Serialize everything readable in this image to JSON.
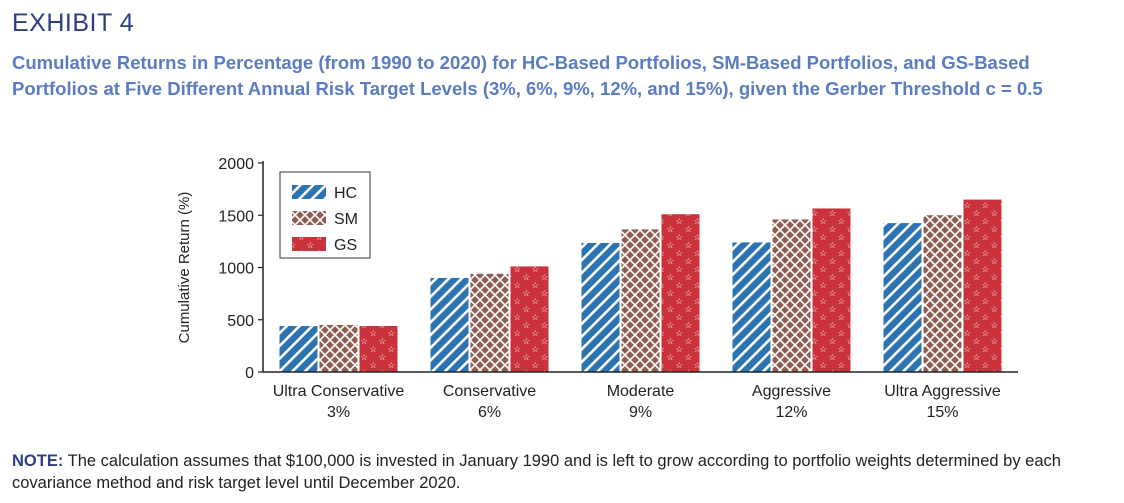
{
  "header": {
    "exhibit": "EXHIBIT 4",
    "title": "Cumulative Returns in Percentage (from 1990 to 2020) for HC-Based Portfolios, SM-Based Portfolios, and GS-Based Portfolios at Five Different Annual Risk Target Levels (3%, 6%, 9%, 12%, and 15%), given the Gerber Threshold c = 0.5"
  },
  "chart_data": {
    "type": "bar",
    "categories": [
      [
        "Ultra Conservative",
        "3%"
      ],
      [
        "Conservative",
        "6%"
      ],
      [
        "Moderate",
        "9%"
      ],
      [
        "Aggressive",
        "12%"
      ],
      [
        "Ultra Aggressive",
        "15%"
      ]
    ],
    "series": [
      {
        "name": "HC",
        "values": [
          440,
          900,
          1235,
          1240,
          1425
        ],
        "color": "#2b73b1",
        "pattern": "diagonal-stripes"
      },
      {
        "name": "SM",
        "values": [
          450,
          940,
          1365,
          1460,
          1500
        ],
        "color": "#8e5e52",
        "pattern": "crosshatch"
      },
      {
        "name": "GS",
        "values": [
          440,
          1010,
          1510,
          1565,
          1650
        ],
        "color": "#c9323a",
        "pattern": "stars"
      }
    ],
    "ylabel": "Cumulative Return (%)",
    "ylim": [
      0,
      2000
    ],
    "yticks": [
      0,
      500,
      1000,
      1500,
      2000
    ],
    "legend_position": "top-left",
    "grid": false
  },
  "note": {
    "label": "NOTE:",
    "text": " The calculation assumes that $100,000 is invested in January 1990 and is left to grow according to portfolio weights determined by each covariance method and risk target level until December 2020."
  }
}
